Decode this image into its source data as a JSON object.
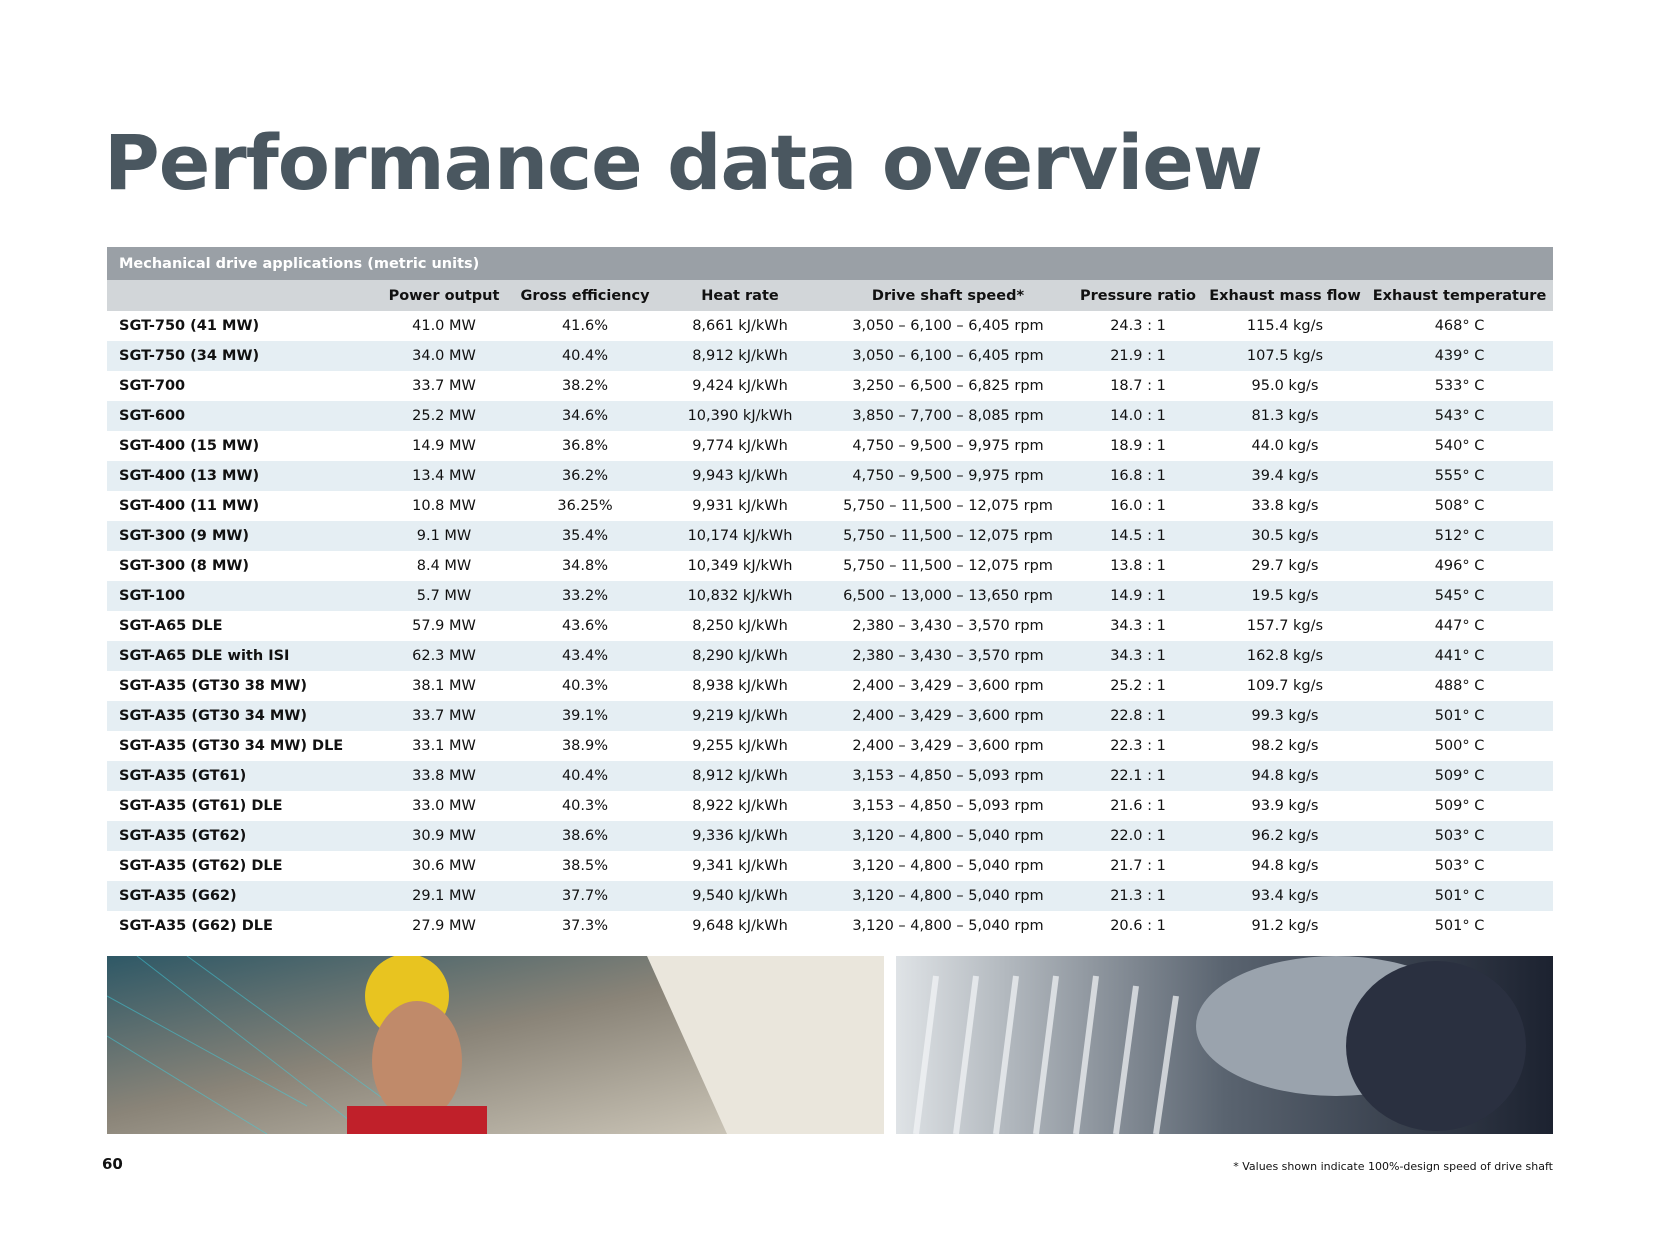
{
  "header": {
    "title": "Performance data overview"
  },
  "table": {
    "title": "Mechanical drive applications (metric units)",
    "columns": [
      "Power output",
      "Gross efficiency",
      "Heat rate",
      "Drive shaft speed*",
      "Pressure ratio",
      "Exhaust mass flow",
      "Exhaust temperature"
    ],
    "rows": [
      [
        "SGT-750 (41 MW)",
        "41.0 MW",
        "41.6%",
        "8,661 kJ/kWh",
        "3,050 – 6,100 – 6,405 rpm",
        "24.3 : 1",
        "115.4 kg/s",
        "468° C"
      ],
      [
        "SGT-750 (34 MW)",
        "34.0 MW",
        "40.4%",
        "8,912 kJ/kWh",
        "3,050 – 6,100 – 6,405 rpm",
        "21.9 : 1",
        "107.5 kg/s",
        "439° C"
      ],
      [
        "SGT-700",
        "33.7 MW",
        "38.2%",
        "9,424 kJ/kWh",
        "3,250 – 6,500 – 6,825 rpm",
        "18.7 : 1",
        "95.0 kg/s",
        "533° C"
      ],
      [
        "SGT-600",
        "25.2 MW",
        "34.6%",
        "10,390 kJ/kWh",
        "3,850 – 7,700 – 8,085 rpm",
        "14.0 : 1",
        "81.3 kg/s",
        "543° C"
      ],
      [
        "SGT-400 (15 MW)",
        "14.9 MW",
        "36.8%",
        "9,774 kJ/kWh",
        "4,750 – 9,500 – 9,975 rpm",
        "18.9 : 1",
        "44.0 kg/s",
        "540° C"
      ],
      [
        "SGT-400 (13 MW)",
        "13.4 MW",
        "36.2%",
        "9,943 kJ/kWh",
        "4,750 – 9,500 – 9,975 rpm",
        "16.8 : 1",
        "39.4 kg/s",
        "555° C"
      ],
      [
        "SGT-400 (11 MW)",
        "10.8 MW",
        "36.25%",
        "9,931 kJ/kWh",
        "5,750 – 11,500 – 12,075 rpm",
        "16.0 : 1",
        "33.8 kg/s",
        "508° C"
      ],
      [
        "SGT-300 (9 MW)",
        "9.1 MW",
        "35.4%",
        "10,174 kJ/kWh",
        "5,750 – 11,500 – 12,075 rpm",
        "14.5 : 1",
        "30.5 kg/s",
        "512° C"
      ],
      [
        "SGT-300 (8 MW)",
        "8.4 MW",
        "34.8%",
        "10,349 kJ/kWh",
        "5,750 – 11,500 – 12,075 rpm",
        "13.8 : 1",
        "29.7 kg/s",
        "496° C"
      ],
      [
        "SGT-100",
        "5.7 MW",
        "33.2%",
        "10,832 kJ/kWh",
        "6,500 – 13,000 – 13,650 rpm",
        "14.9 : 1",
        "19.5 kg/s",
        "545° C"
      ],
      [
        "SGT-A65 DLE",
        "57.9 MW",
        "43.6%",
        "8,250 kJ/kWh",
        "2,380 – 3,430 – 3,570 rpm",
        "34.3 : 1",
        "157.7 kg/s",
        "447° C"
      ],
      [
        "SGT-A65 DLE with ISI",
        "62.3 MW",
        "43.4%",
        "8,290 kJ/kWh",
        "2,380 – 3,430 – 3,570 rpm",
        "34.3 : 1",
        "162.8 kg/s",
        "441° C"
      ],
      [
        "SGT-A35 (GT30 38 MW)",
        "38.1 MW",
        "40.3%",
        "8,938 kJ/kWh",
        "2,400 – 3,429 – 3,600 rpm",
        "25.2 : 1",
        "109.7 kg/s",
        "488° C"
      ],
      [
        "SGT-A35 (GT30 34 MW)",
        "33.7 MW",
        "39.1%",
        "9,219 kJ/kWh",
        "2,400 – 3,429 – 3,600 rpm",
        "22.8 : 1",
        "99.3 kg/s",
        "501° C"
      ],
      [
        "SGT-A35 (GT30 34 MW) DLE",
        "33.1 MW",
        "38.9%",
        "9,255 kJ/kWh",
        "2,400 – 3,429 – 3,600 rpm",
        "22.3 : 1",
        "98.2 kg/s",
        "500° C"
      ],
      [
        "SGT-A35 (GT61)",
        "33.8 MW",
        "40.4%",
        "8,912 kJ/kWh",
        "3,153 – 4,850 – 5,093 rpm",
        "22.1 : 1",
        "94.8 kg/s",
        "509° C"
      ],
      [
        "SGT-A35 (GT61) DLE",
        "33.0 MW",
        "40.3%",
        "8,922 kJ/kWh",
        "3,153 – 4,850 – 5,093 rpm",
        "21.6 : 1",
        "93.9 kg/s",
        "509° C"
      ],
      [
        "SGT-A35 (GT62)",
        "30.9 MW",
        "38.6%",
        "9,336 kJ/kWh",
        "3,120 – 4,800 – 5,040 rpm",
        "22.0 : 1",
        "96.2 kg/s",
        "503° C"
      ],
      [
        "SGT-A35 (GT62) DLE",
        "30.6 MW",
        "38.5%",
        "9,341 kJ/kWh",
        "3,120 – 4,800 – 5,040 rpm",
        "21.7 : 1",
        "94.8 kg/s",
        "503° C"
      ],
      [
        "SGT-A35 (G62)",
        "29.1 MW",
        "37.7%",
        "9,540 kJ/kWh",
        "3,120 – 4,800 – 5,040 rpm",
        "21.3 : 1",
        "93.4 kg/s",
        "501° C"
      ],
      [
        "SGT-A35 (G62) DLE",
        "27.9 MW",
        "37.3%",
        "9,648 kJ/kWh",
        "3,120 – 4,800 – 5,040 rpm",
        "20.6 : 1",
        "91.2 kg/s",
        "501° C"
      ]
    ]
  },
  "footer": {
    "page_number": "60",
    "footnote": "* Values shown indicate 100%-design speed of drive shaft"
  }
}
